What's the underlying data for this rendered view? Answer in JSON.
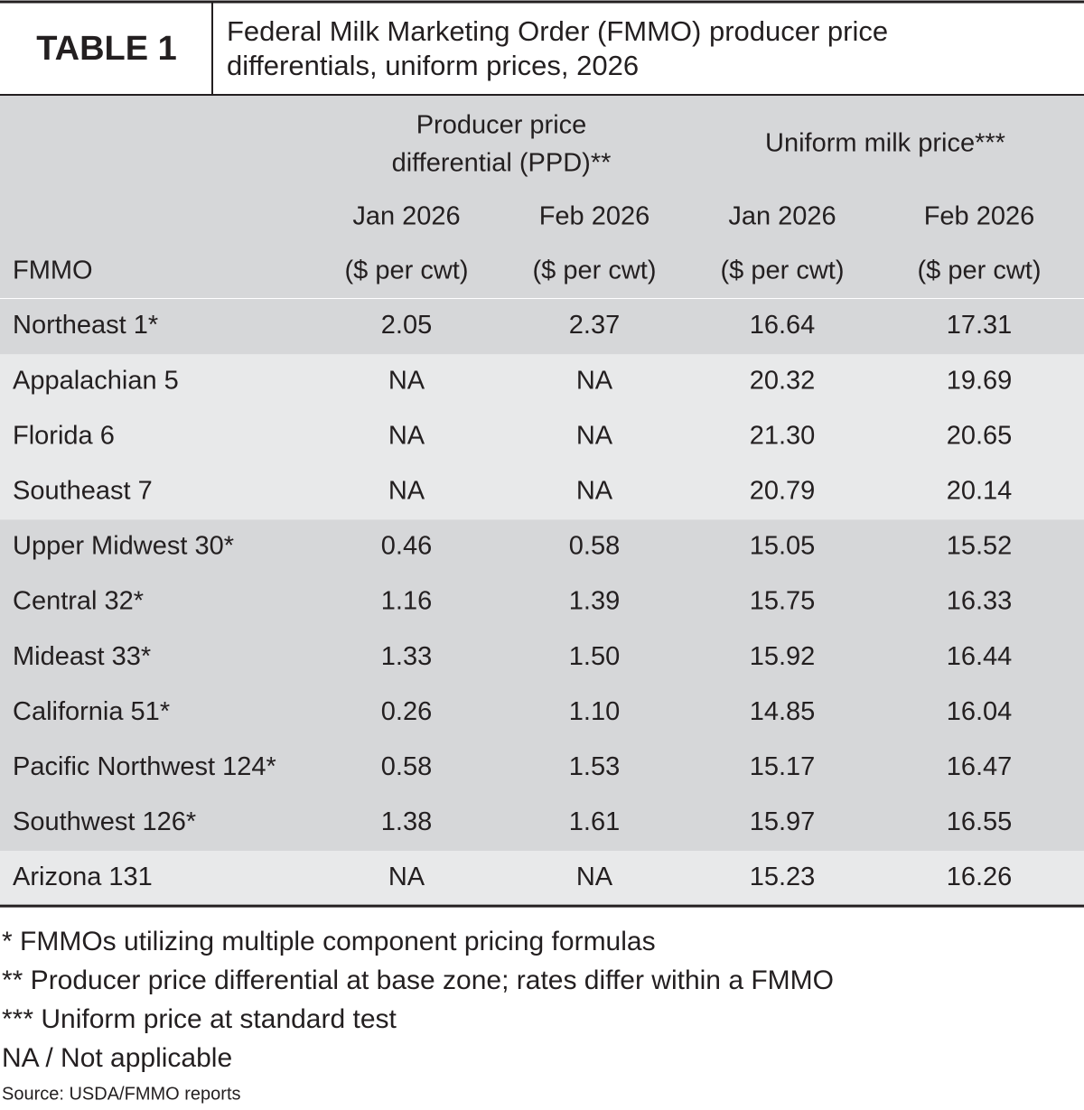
{
  "header": {
    "label": "TABLE 1",
    "title": [
      "Federal Milk Marketing Order (FMMO) producer price",
      "differentials, uniform prices, 2026"
    ]
  },
  "table": {
    "row_header": "FMMO",
    "groups": [
      {
        "lines": [
          "Producer price",
          "differential (PPD)**"
        ]
      },
      {
        "lines": [
          "Uniform milk price***"
        ]
      }
    ],
    "columns": [
      {
        "period": "Jan 2026",
        "unit": "($ per cwt)"
      },
      {
        "period": "Feb 2026",
        "unit": "($ per cwt)"
      },
      {
        "period": "Jan 2026",
        "unit": "($ per cwt)"
      },
      {
        "period": "Feb 2026",
        "unit": "($ per cwt)"
      }
    ],
    "rows": [
      [
        "Northeast 1*",
        "2.05",
        "2.37",
        "16.64",
        "17.31"
      ],
      [
        "Appalachian 5",
        "NA",
        "NA",
        "20.32",
        "19.69"
      ],
      [
        "Florida 6",
        "NA",
        "NA",
        "21.30",
        "20.65"
      ],
      [
        "Southeast 7",
        "NA",
        "NA",
        "20.79",
        "20.14"
      ],
      [
        "Upper Midwest 30*",
        "0.46",
        "0.58",
        "15.05",
        "15.52"
      ],
      [
        "Central 32*",
        "1.16",
        "1.39",
        "15.75",
        "16.33"
      ],
      [
        "Mideast 33*",
        "1.33",
        "1.50",
        "15.92",
        "16.44"
      ],
      [
        "California 51*",
        "0.26",
        "1.10",
        "14.85",
        "16.04"
      ],
      [
        "Pacific Northwest 124*",
        "0.58",
        "1.53",
        "15.17",
        "16.47"
      ],
      [
        "Southwest 126*",
        "1.38",
        "1.61",
        "15.97",
        "16.55"
      ],
      [
        "Arizona 131",
        "NA",
        "NA",
        "15.23",
        "16.26"
      ]
    ]
  },
  "footnotes": [
    "* FMMOs utilizing multiple component pricing formulas",
    "** Producer price differential at base zone; rates differ within a FMMO",
    "*** Uniform price at standard test",
    "NA / Not applicable"
  ],
  "source": "Source: USDA/FMMO reports"
}
